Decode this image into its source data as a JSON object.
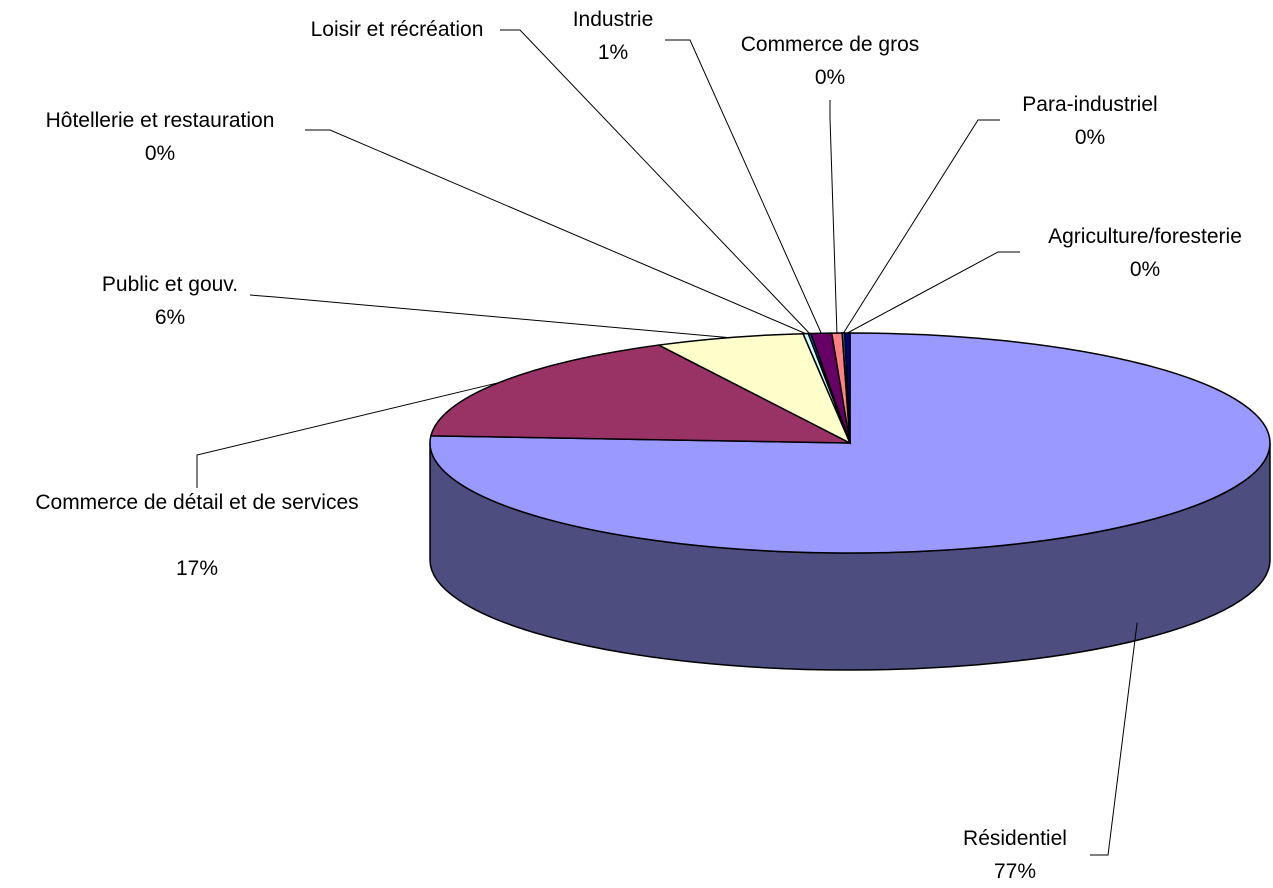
{
  "chart_data": {
    "type": "pie",
    "categories": [
      "Résidentiel",
      "Commerce de détail et de services",
      "Public et gouv.",
      "Hôtellerie et restauration",
      "Loisir et récréation",
      "Industrie",
      "Commerce de gros",
      "Para-industriel",
      "Agriculture/foresterie"
    ],
    "values": [
      76.8,
      16.6,
      5.8,
      0.2,
      0.1,
      0.8,
      0.4,
      0.1,
      0.2
    ],
    "value_labels": [
      "77%",
      "17%",
      "6%",
      "0%",
      null,
      "1%",
      "0%",
      "0%",
      "0%"
    ],
    "colors": [
      "#9999ff",
      "#993366",
      "#ffffcc",
      "#ccffff",
      "#0066cc",
      "#660066",
      "#ff8080",
      "#3366cc",
      "#000080"
    ]
  }
}
